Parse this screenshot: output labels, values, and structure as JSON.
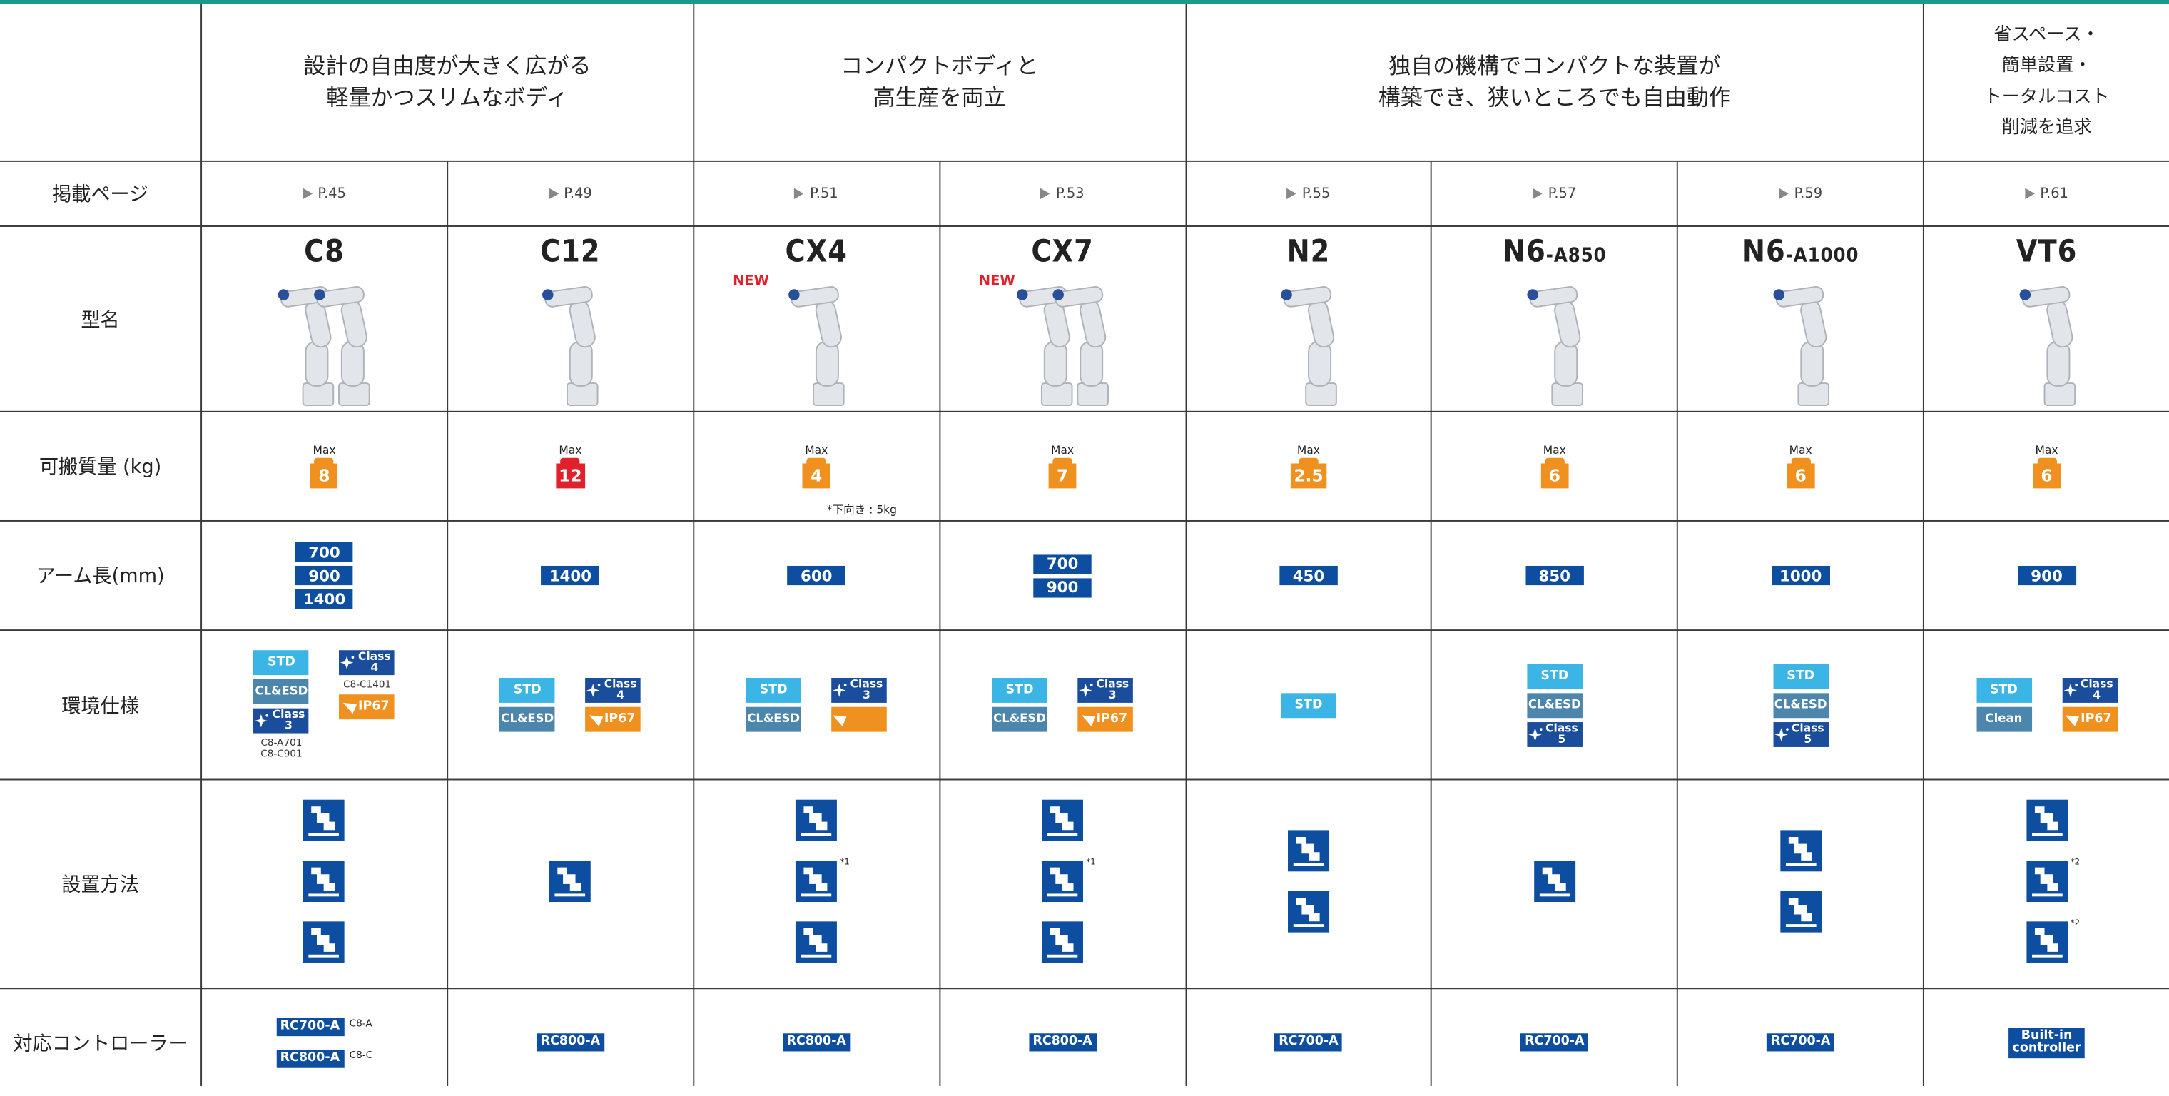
{
  "header": {
    "groups": [
      {
        "text": "設計の自由度が大きく広がる\n軽量かつスリムなボディ"
      },
      {
        "text": "コンパクトボディと\n高生産を両立"
      },
      {
        "text": "独自の機構でコンパクトな装置が\n構築でき、狭いところでも自由動作"
      },
      {
        "text": "省スペース・\n簡単設置・\nトータルコスト\n削減を追求"
      }
    ]
  },
  "row_labels": [
    "掲載ページ",
    "型名",
    "可搬質量 (kg)",
    "アーム長(mm)",
    "環境仕様",
    "設置方法",
    "対応コントローラー"
  ],
  "models": [
    {
      "page": "P.45",
      "name": "C8",
      "payload": {
        "label": "Max",
        "value": 8,
        "color": "#f0901e"
      },
      "arm": [
        700,
        900,
        1400
      ],
      "env": [
        [
          {
            "style": "std",
            "text": "STD"
          },
          {
            "style": "cl",
            "text": "CL&ESD"
          },
          {
            "style": "class",
            "text": "Class",
            "level": "3",
            "note": "C8-A701\nC8-C901"
          }
        ],
        [
          {
            "style": "class",
            "text": "Class",
            "level": "4",
            "note": "C8-C1401"
          },
          {
            "style": "ip",
            "text": "IP67"
          }
        ]
      ],
      "controller": [
        {
          "text": "RC700-A",
          "note": "C8-A"
        },
        {
          "text": "RC800-A",
          "note": "C8-C"
        }
      ]
    },
    {
      "page": "P.49",
      "name": "C12",
      "payload": {
        "label": "Max",
        "value": 12,
        "color": "#e0202a"
      },
      "arm": [
        1400
      ],
      "env": [
        [
          {
            "style": "std",
            "text": "STD"
          },
          {
            "style": "cl",
            "text": "CL&ESD"
          }
        ],
        [
          {
            "style": "class",
            "text": "Class",
            "level": "4"
          },
          {
            "style": "ip",
            "text": "IP67"
          }
        ]
      ],
      "controller": [
        {
          "text": "RC800-A"
        }
      ]
    },
    {
      "page": "P.51",
      "name": "CX4",
      "badge": "NEW",
      "payload": {
        "label": "Max",
        "value": 4,
        "color": "#f0901e",
        "note": "*下向き : 5kg"
      },
      "arm": [
        600
      ],
      "env": [
        [
          {
            "style": "std",
            "text": "STD"
          },
          {
            "style": "cl",
            "text": "CL&ESD"
          }
        ],
        [
          {
            "style": "class",
            "text": "Class",
            "level": "3"
          },
          {
            "style": "ip"
          }
        ]
      ],
      "install_notes": [
        "*1"
      ],
      "controller": [
        {
          "text": "RC800-A"
        }
      ]
    },
    {
      "page": "P.53",
      "name": "CX7",
      "badge": "NEW",
      "payload": {
        "label": "Max",
        "value": 7,
        "color": "#f0901e"
      },
      "arm": [
        700,
        900
      ],
      "env": [
        [
          {
            "style": "std",
            "text": "STD"
          },
          {
            "style": "cl",
            "text": "CL&ESD"
          }
        ],
        [
          {
            "style": "class",
            "text": "Class",
            "level": "3"
          },
          {
            "style": "ip",
            "text": "IP67"
          }
        ]
      ],
      "install_notes": [
        "*1"
      ],
      "controller": [
        {
          "text": "RC800-A"
        }
      ]
    },
    {
      "page": "P.55",
      "name": "N2",
      "payload": {
        "label": "Max",
        "value": 2.5,
        "color": "#f0901e"
      },
      "arm": [
        450
      ],
      "env": [
        [
          {
            "style": "std",
            "text": "STD"
          }
        ]
      ],
      "controller": [
        {
          "text": "RC700-A"
        }
      ]
    },
    {
      "page": "P.57",
      "name": "N6",
      "variant": "-A850",
      "payload": {
        "label": "Max",
        "value": 6,
        "color": "#f0901e"
      },
      "arm": [
        850
      ],
      "env": [
        [
          {
            "style": "std",
            "text": "STD"
          },
          {
            "style": "cl",
            "text": "CL&ESD"
          },
          {
            "style": "class",
            "text": "Class",
            "level": "5"
          }
        ]
      ],
      "controller": [
        {
          "text": "RC700-A"
        }
      ]
    },
    {
      "page": "P.59",
      "name": "N6",
      "variant": "-A1000",
      "payload": {
        "label": "Max",
        "value": 6,
        "color": "#f0901e"
      },
      "arm": [
        1000
      ],
      "env": [
        [
          {
            "style": "std",
            "text": "STD"
          },
          {
            "style": "cl",
            "text": "CL&ESD"
          },
          {
            "style": "class",
            "text": "Class",
            "level": "5"
          }
        ]
      ],
      "controller": [
        {
          "text": "RC700-A"
        }
      ]
    },
    {
      "page": "P.61",
      "name": "VT6",
      "payload": {
        "label": "Max",
        "value": 6,
        "color": "#f0901e"
      },
      "arm": [
        900
      ],
      "env": [
        [
          {
            "style": "std",
            "text": "STD"
          },
          {
            "style": "cl",
            "text": "Clean"
          }
        ],
        [
          {
            "style": "class",
            "text": "Class",
            "level": "4"
          },
          {
            "style": "ip",
            "text": "IP67"
          }
        ]
      ],
      "install_notes": [
        "*2",
        "*2"
      ],
      "controller": [
        {
          "text": "Built-in\ncontroller"
        }
      ]
    }
  ]
}
